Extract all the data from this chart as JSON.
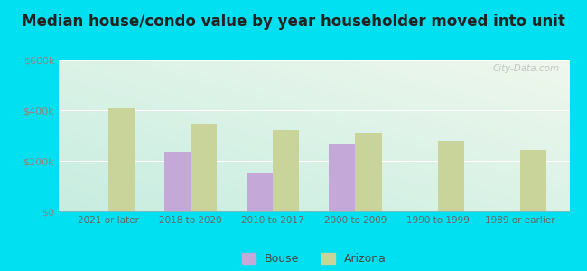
{
  "title": "Median house/condo value by year householder moved into unit",
  "categories": [
    "2021 or later",
    "2018 to 2020",
    "2010 to 2017",
    "2000 to 2009",
    "1990 to 1999",
    "1989 or earlier"
  ],
  "bouse_values": [
    null,
    237000,
    152000,
    268000,
    null,
    null
  ],
  "arizona_values": [
    408000,
    348000,
    320000,
    310000,
    278000,
    243000
  ],
  "bouse_color": "#c4a8d8",
  "arizona_color": "#c8d49a",
  "background_outer": "#00e0f0",
  "ylim": [
    0,
    600000
  ],
  "yticks": [
    0,
    200000,
    400000,
    600000
  ],
  "ytick_labels": [
    "$0",
    "$200k",
    "$400k",
    "$600k"
  ],
  "bar_width": 0.32,
  "title_fontsize": 12,
  "legend_labels": [
    "Bouse",
    "Arizona"
  ],
  "watermark": "City-Data.com"
}
